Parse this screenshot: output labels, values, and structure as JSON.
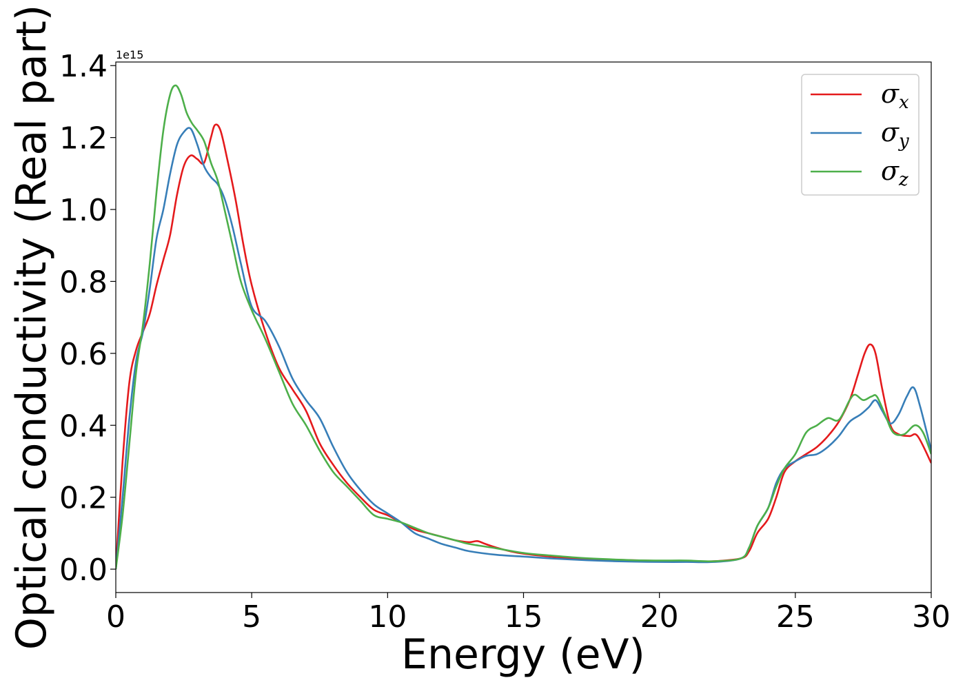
{
  "chart_data": {
    "type": "line",
    "title": "",
    "xlabel": "Energy (eV)",
    "ylabel": "Optical conductivity (Real part)",
    "y_offset_text": "1e15",
    "y_scale_factor": 1000000000000000.0,
    "xlim": [
      0,
      30
    ],
    "ylim": [
      -0.065,
      1.41
    ],
    "xticks": [
      0,
      5,
      10,
      15,
      20,
      25,
      30
    ],
    "xtick_labels": [
      "0",
      "5",
      "10",
      "15",
      "20",
      "25",
      "30"
    ],
    "yticks": [
      0.0,
      0.2,
      0.4,
      0.6,
      0.8,
      1.0,
      1.2,
      1.4
    ],
    "ytick_labels": [
      "0.0",
      "0.2",
      "0.4",
      "0.6",
      "0.8",
      "1.0",
      "1.2",
      "1.4"
    ],
    "grid": false,
    "legend_position": "top-right",
    "series": [
      {
        "name": "σx",
        "legend_base": "σ",
        "legend_sub": "x",
        "color": "#e41a1c",
        "points": [
          [
            0,
            0
          ],
          [
            0.25,
            0.3
          ],
          [
            0.5,
            0.52
          ],
          [
            0.75,
            0.61
          ],
          [
            1.0,
            0.66
          ],
          [
            1.25,
            0.71
          ],
          [
            1.5,
            0.79
          ],
          [
            1.75,
            0.86
          ],
          [
            2.0,
            0.93
          ],
          [
            2.25,
            1.04
          ],
          [
            2.5,
            1.12
          ],
          [
            2.75,
            1.15
          ],
          [
            3.0,
            1.14
          ],
          [
            3.25,
            1.13
          ],
          [
            3.5,
            1.2
          ],
          [
            3.65,
            1.235
          ],
          [
            3.85,
            1.22
          ],
          [
            4.1,
            1.14
          ],
          [
            4.4,
            1.03
          ],
          [
            4.7,
            0.9
          ],
          [
            5.0,
            0.79
          ],
          [
            5.5,
            0.66
          ],
          [
            6.0,
            0.56
          ],
          [
            6.5,
            0.5
          ],
          [
            7.0,
            0.44
          ],
          [
            7.5,
            0.35
          ],
          [
            8.0,
            0.29
          ],
          [
            8.5,
            0.24
          ],
          [
            9.0,
            0.2
          ],
          [
            9.5,
            0.165
          ],
          [
            10.0,
            0.15
          ],
          [
            10.5,
            0.13
          ],
          [
            11.0,
            0.11
          ],
          [
            11.5,
            0.1
          ],
          [
            12.0,
            0.09
          ],
          [
            12.5,
            0.08
          ],
          [
            13.0,
            0.075
          ],
          [
            13.3,
            0.078
          ],
          [
            13.6,
            0.07
          ],
          [
            14.0,
            0.06
          ],
          [
            14.5,
            0.05
          ],
          [
            15.0,
            0.043
          ],
          [
            16.0,
            0.035
          ],
          [
            17.0,
            0.03
          ],
          [
            18.0,
            0.027
          ],
          [
            19.0,
            0.025
          ],
          [
            20.0,
            0.023
          ],
          [
            21.0,
            0.022
          ],
          [
            22.0,
            0.022
          ],
          [
            23.0,
            0.03
          ],
          [
            23.3,
            0.05
          ],
          [
            23.6,
            0.1
          ],
          [
            24.0,
            0.14
          ],
          [
            24.3,
            0.2
          ],
          [
            24.6,
            0.27
          ],
          [
            25.0,
            0.3
          ],
          [
            25.4,
            0.32
          ],
          [
            25.8,
            0.34
          ],
          [
            26.2,
            0.37
          ],
          [
            26.6,
            0.41
          ],
          [
            27.0,
            0.47
          ],
          [
            27.3,
            0.54
          ],
          [
            27.55,
            0.6
          ],
          [
            27.75,
            0.625
          ],
          [
            27.95,
            0.6
          ],
          [
            28.2,
            0.5
          ],
          [
            28.5,
            0.4
          ],
          [
            28.8,
            0.375
          ],
          [
            29.2,
            0.37
          ],
          [
            29.5,
            0.37
          ],
          [
            30.0,
            0.295
          ]
        ]
      },
      {
        "name": "σy",
        "legend_base": "σ",
        "legend_sub": "y",
        "color": "#377eb8",
        "points": [
          [
            0,
            0
          ],
          [
            0.25,
            0.2
          ],
          [
            0.5,
            0.42
          ],
          [
            0.75,
            0.58
          ],
          [
            1.0,
            0.66
          ],
          [
            1.25,
            0.78
          ],
          [
            1.5,
            0.92
          ],
          [
            1.75,
            1.0
          ],
          [
            2.0,
            1.1
          ],
          [
            2.25,
            1.18
          ],
          [
            2.5,
            1.215
          ],
          [
            2.75,
            1.225
          ],
          [
            3.0,
            1.18
          ],
          [
            3.25,
            1.12
          ],
          [
            3.5,
            1.09
          ],
          [
            3.75,
            1.07
          ],
          [
            4.0,
            1.03
          ],
          [
            4.3,
            0.95
          ],
          [
            4.6,
            0.85
          ],
          [
            5.0,
            0.73
          ],
          [
            5.5,
            0.69
          ],
          [
            6.0,
            0.62
          ],
          [
            6.5,
            0.53
          ],
          [
            7.0,
            0.47
          ],
          [
            7.5,
            0.42
          ],
          [
            8.0,
            0.34
          ],
          [
            8.5,
            0.27
          ],
          [
            9.0,
            0.22
          ],
          [
            9.5,
            0.18
          ],
          [
            10.0,
            0.155
          ],
          [
            10.5,
            0.13
          ],
          [
            11.0,
            0.1
          ],
          [
            11.5,
            0.085
          ],
          [
            12.0,
            0.07
          ],
          [
            12.5,
            0.06
          ],
          [
            13.0,
            0.05
          ],
          [
            14.0,
            0.04
          ],
          [
            15.0,
            0.035
          ],
          [
            16.0,
            0.03
          ],
          [
            17.0,
            0.026
          ],
          [
            18.0,
            0.023
          ],
          [
            19.0,
            0.021
          ],
          [
            20.0,
            0.02
          ],
          [
            21.0,
            0.02
          ],
          [
            22.0,
            0.02
          ],
          [
            23.0,
            0.03
          ],
          [
            23.3,
            0.06
          ],
          [
            23.6,
            0.12
          ],
          [
            24.0,
            0.17
          ],
          [
            24.3,
            0.24
          ],
          [
            24.6,
            0.28
          ],
          [
            25.0,
            0.3
          ],
          [
            25.4,
            0.315
          ],
          [
            25.8,
            0.32
          ],
          [
            26.2,
            0.34
          ],
          [
            26.6,
            0.37
          ],
          [
            27.0,
            0.41
          ],
          [
            27.4,
            0.43
          ],
          [
            27.7,
            0.45
          ],
          [
            27.95,
            0.47
          ],
          [
            28.2,
            0.44
          ],
          [
            28.5,
            0.405
          ],
          [
            28.8,
            0.43
          ],
          [
            29.1,
            0.48
          ],
          [
            29.35,
            0.505
          ],
          [
            29.6,
            0.45
          ],
          [
            30.0,
            0.33
          ]
        ]
      },
      {
        "name": "σz",
        "legend_base": "σ",
        "legend_sub": "z",
        "color": "#4daf4a",
        "points": [
          [
            0,
            0
          ],
          [
            0.25,
            0.15
          ],
          [
            0.5,
            0.35
          ],
          [
            0.75,
            0.55
          ],
          [
            1.0,
            0.68
          ],
          [
            1.25,
            0.85
          ],
          [
            1.5,
            1.05
          ],
          [
            1.75,
            1.22
          ],
          [
            2.0,
            1.32
          ],
          [
            2.2,
            1.345
          ],
          [
            2.4,
            1.32
          ],
          [
            2.6,
            1.27
          ],
          [
            2.8,
            1.24
          ],
          [
            3.0,
            1.22
          ],
          [
            3.25,
            1.19
          ],
          [
            3.5,
            1.13
          ],
          [
            3.75,
            1.08
          ],
          [
            4.0,
            1.0
          ],
          [
            4.3,
            0.9
          ],
          [
            4.6,
            0.8
          ],
          [
            5.0,
            0.72
          ],
          [
            5.5,
            0.64
          ],
          [
            6.0,
            0.55
          ],
          [
            6.5,
            0.46
          ],
          [
            7.0,
            0.4
          ],
          [
            7.5,
            0.33
          ],
          [
            8.0,
            0.27
          ],
          [
            8.5,
            0.23
          ],
          [
            9.0,
            0.19
          ],
          [
            9.5,
            0.15
          ],
          [
            10.0,
            0.14
          ],
          [
            10.5,
            0.13
          ],
          [
            11.0,
            0.115
          ],
          [
            11.5,
            0.1
          ],
          [
            12.0,
            0.09
          ],
          [
            12.5,
            0.08
          ],
          [
            13.0,
            0.07
          ],
          [
            14.0,
            0.058
          ],
          [
            15.0,
            0.045
          ],
          [
            16.0,
            0.038
          ],
          [
            17.0,
            0.032
          ],
          [
            18.0,
            0.028
          ],
          [
            19.0,
            0.025
          ],
          [
            20.0,
            0.024
          ],
          [
            21.0,
            0.024
          ],
          [
            22.0,
            0.022
          ],
          [
            23.0,
            0.03
          ],
          [
            23.3,
            0.06
          ],
          [
            23.6,
            0.12
          ],
          [
            24.0,
            0.17
          ],
          [
            24.3,
            0.23
          ],
          [
            24.6,
            0.28
          ],
          [
            25.0,
            0.32
          ],
          [
            25.4,
            0.38
          ],
          [
            25.8,
            0.4
          ],
          [
            26.2,
            0.42
          ],
          [
            26.6,
            0.415
          ],
          [
            27.0,
            0.47
          ],
          [
            27.2,
            0.485
          ],
          [
            27.5,
            0.47
          ],
          [
            27.8,
            0.48
          ],
          [
            28.0,
            0.48
          ],
          [
            28.3,
            0.43
          ],
          [
            28.6,
            0.38
          ],
          [
            29.0,
            0.375
          ],
          [
            29.4,
            0.4
          ],
          [
            29.7,
            0.38
          ],
          [
            30.0,
            0.32
          ]
        ]
      }
    ]
  }
}
